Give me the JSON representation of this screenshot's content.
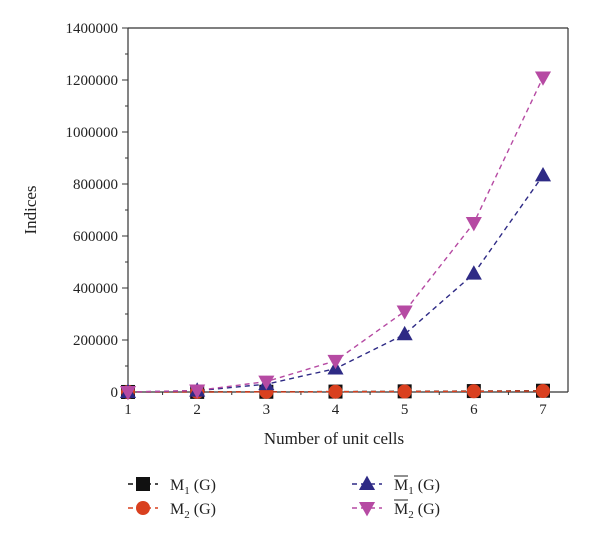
{
  "chart_data": {
    "type": "line",
    "xlabel": "Number of unit cells",
    "ylabel": "Indices",
    "x": [
      1,
      2,
      3,
      4,
      5,
      6,
      7
    ],
    "xlim": [
      1,
      7
    ],
    "ylim": [
      0,
      1400000
    ],
    "yticks": [
      0,
      200000,
      400000,
      600000,
      800000,
      1000000,
      1200000,
      1400000
    ],
    "ytick_labels": [
      "0",
      "200000",
      "400000",
      "600000",
      "800000",
      "1000000",
      "1200000",
      "1400000"
    ],
    "xtick_labels": [
      "1",
      "2",
      "3",
      "4",
      "5",
      "6",
      "7"
    ],
    "grid": false,
    "legend_position": "bottom",
    "series": [
      {
        "key": "m1",
        "name": "M",
        "sub": "1",
        "suffix": " (G)",
        "overline": false,
        "color": "#111111",
        "marker": "square",
        "values": [
          100,
          400,
          900,
          1600,
          2500,
          3600,
          4900
        ]
      },
      {
        "key": "m2",
        "name": "M",
        "sub": "2",
        "suffix": " (G)",
        "overline": false,
        "color": "#d9401f",
        "marker": "circle",
        "values": [
          50,
          250,
          600,
          1100,
          1800,
          2700,
          3800
        ]
      },
      {
        "key": "mbar1",
        "name": "M",
        "sub": "1",
        "suffix": " (G)",
        "overline": true,
        "color": "#2e2a85",
        "marker": "triangle-up",
        "values": [
          0,
          5000,
          30000,
          90000,
          222000,
          455000,
          833000
        ]
      },
      {
        "key": "mbar2",
        "name": "M",
        "sub": "2",
        "suffix": " (G)",
        "overline": true,
        "color": "#b64aa3",
        "marker": "triangle-down",
        "values": [
          0,
          6000,
          40000,
          120000,
          310000,
          650000,
          1210000
        ]
      }
    ]
  }
}
